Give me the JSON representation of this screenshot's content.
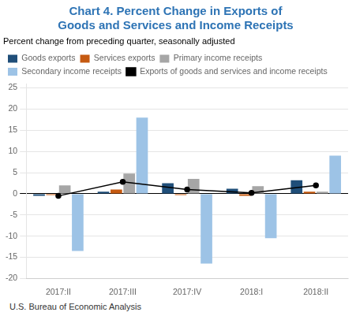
{
  "chart_data": {
    "type": "bar",
    "title": [
      "Chart 4. Percent Change in Exports of",
      "Goods and Services and Income Receipts"
    ],
    "title_color": "#2e74b5",
    "subtitle": "Percent change from preceding quarter, seasonally adjusted",
    "footnote": "U.S. Bureau of Economic Analysis",
    "categories": [
      "2017:II",
      "2017:III",
      "2017:IV",
      "2018:I",
      "2018:II"
    ],
    "series": [
      {
        "name": "Goods exports",
        "color": "#1f4e79",
        "values": [
          -0.5,
          0.5,
          2.5,
          1.2,
          3.2
        ]
      },
      {
        "name": "Services exports",
        "color": "#c55a11",
        "values": [
          -0.3,
          1.0,
          -0.3,
          -0.5,
          0.5
        ]
      },
      {
        "name": "Primary income receipts",
        "color": "#a6a6a6",
        "values": [
          2.0,
          4.8,
          3.5,
          1.8,
          0.5
        ]
      },
      {
        "name": "Secondary income receipts",
        "color": "#9dc3e6",
        "values": [
          -13.5,
          18.0,
          -16.5,
          -10.5,
          9.0
        ]
      },
      {
        "name": "Exports of goods and services and income receipts",
        "type": "line",
        "color": "#000000",
        "marker": "circle",
        "values": [
          -0.5,
          2.8,
          1.0,
          0.2,
          2.0
        ]
      }
    ],
    "ylim": [
      -20,
      26
    ],
    "yticks": [
      -20,
      -15,
      -10,
      -5,
      0,
      5,
      10,
      15,
      20,
      25
    ],
    "grid": true,
    "legend": "top"
  }
}
